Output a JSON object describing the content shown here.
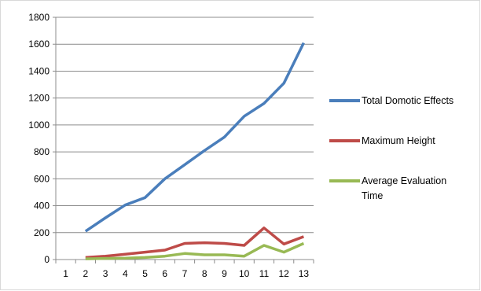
{
  "chart_data": {
    "type": "line",
    "title": "",
    "xlabel": "",
    "ylabel": "",
    "categories": [
      "1",
      "2",
      "3",
      "4",
      "5",
      "6",
      "7",
      "8",
      "9",
      "10",
      "11",
      "12",
      "13"
    ],
    "ylim": [
      0,
      1800
    ],
    "yticks": [
      "0",
      "200",
      "400",
      "600",
      "800",
      "1000",
      "1200",
      "1400",
      "1600",
      "1800"
    ],
    "grid": "horizontal",
    "legend_position": "right",
    "series": [
      {
        "name": "Total Domotic  Effects",
        "legend_lines": [
          "Total Domotic  Effects"
        ],
        "color": "#4a7ebb",
        "values": [
          null,
          210,
          310,
          405,
          460,
          600,
          705,
          810,
          910,
          1065,
          1160,
          1310,
          1610
        ]
      },
      {
        "name": "Maximum Height",
        "legend_lines": [
          "Maximum Height"
        ],
        "color": "#be4b48",
        "values": [
          null,
          15,
          25,
          40,
          55,
          70,
          120,
          125,
          120,
          105,
          235,
          115,
          170
        ]
      },
      {
        "name": "Average Evaluation Time",
        "legend_lines": [
          "Average Evaluation",
          "Time"
        ],
        "color": "#98b954",
        "values": [
          null,
          5,
          8,
          10,
          15,
          25,
          45,
          35,
          35,
          25,
          105,
          55,
          120
        ]
      }
    ]
  }
}
